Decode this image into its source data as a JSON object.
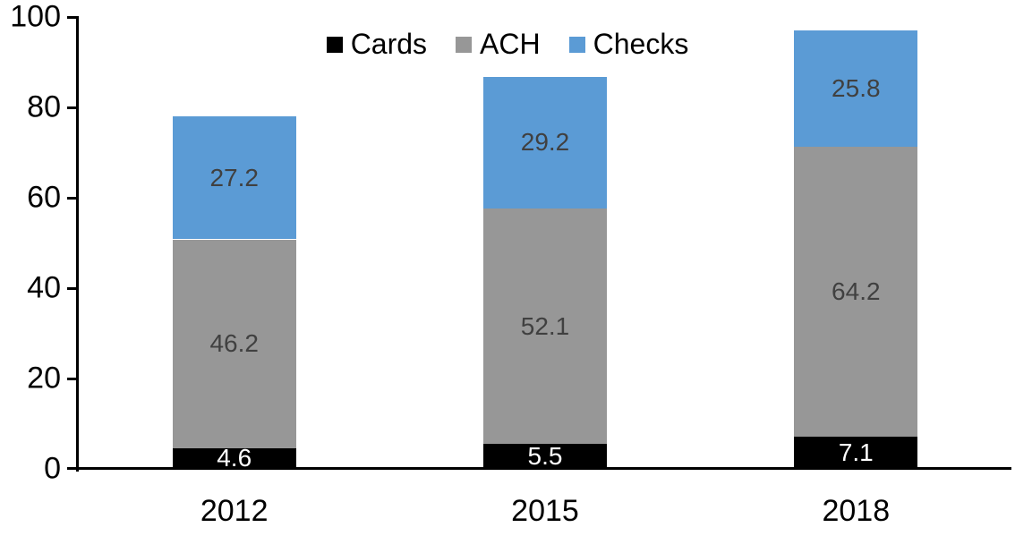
{
  "chart_data": {
    "type": "bar",
    "stacked": true,
    "title": "",
    "xlabel": "",
    "ylabel": "",
    "categories": [
      "2012",
      "2015",
      "2018"
    ],
    "series": [
      {
        "name": "Cards",
        "color": "#000000",
        "label_color": "#FFFFFF",
        "values": [
          4.6,
          5.5,
          7.1
        ]
      },
      {
        "name": "ACH",
        "color": "#979797",
        "label_color": "#404040",
        "values": [
          46.2,
          52.1,
          64.2
        ]
      },
      {
        "name": "Checks",
        "color": "#5B9BD5",
        "label_color": "#404040",
        "values": [
          27.2,
          29.2,
          25.8
        ]
      }
    ],
    "totals": [
      78.0,
      86.8,
      97.1
    ],
    "ylim": [
      0,
      100
    ],
    "yticks": [
      0,
      20,
      40,
      60,
      80,
      100
    ],
    "grid": false,
    "data_labels": true,
    "legend_position": "top-center",
    "axis_color": "#000000",
    "text_color": "#000000",
    "background_color": "#FFFFFF"
  }
}
